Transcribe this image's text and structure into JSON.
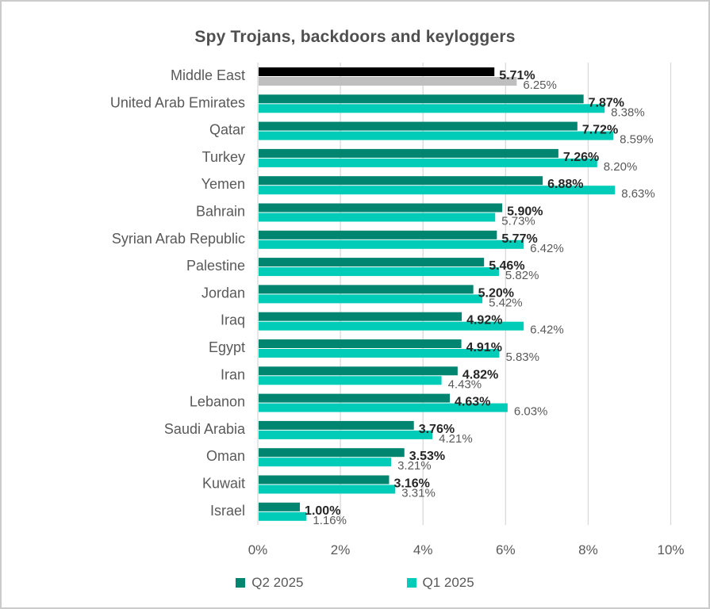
{
  "chart_data": {
    "type": "bar",
    "orientation": "horizontal",
    "title": "Spy Trojans, backdoors and keyloggers",
    "categories": [
      "Middle East",
      "United Arab Emirates",
      "Qatar",
      "Turkey",
      "Yemen",
      "Bahrain",
      "Syrian Arab Republic",
      "Palestine",
      "Jordan",
      "Iraq",
      "Egypt",
      "Iran",
      "Lebanon",
      "Saudi Arabia",
      "Oman",
      "Kuwait",
      "Israel"
    ],
    "series": [
      {
        "name": "Q2 2025",
        "color": "#008571",
        "values": [
          5.71,
          7.87,
          7.72,
          7.26,
          6.88,
          5.9,
          5.77,
          5.46,
          5.2,
          4.92,
          4.91,
          4.82,
          4.63,
          3.76,
          3.53,
          3.16,
          1.0
        ]
      },
      {
        "name": "Q1 2025",
        "color": "#00CCB8",
        "values": [
          6.25,
          8.38,
          8.59,
          8.2,
          8.63,
          5.73,
          6.42,
          5.82,
          5.42,
          6.42,
          5.83,
          4.43,
          6.03,
          4.21,
          3.21,
          3.31,
          1.16
        ]
      }
    ],
    "highlight": {
      "category": "Middle East",
      "colors": [
        "#000000",
        "#BFBFBF"
      ]
    },
    "x_ticks": [
      "0%",
      "2%",
      "4%",
      "6%",
      "8%",
      "10%"
    ],
    "xlim": [
      0,
      10
    ],
    "grid": true,
    "gridline_color": "#D9D9D9",
    "legend_position": "bottom",
    "value_label_format": "0.00%"
  }
}
